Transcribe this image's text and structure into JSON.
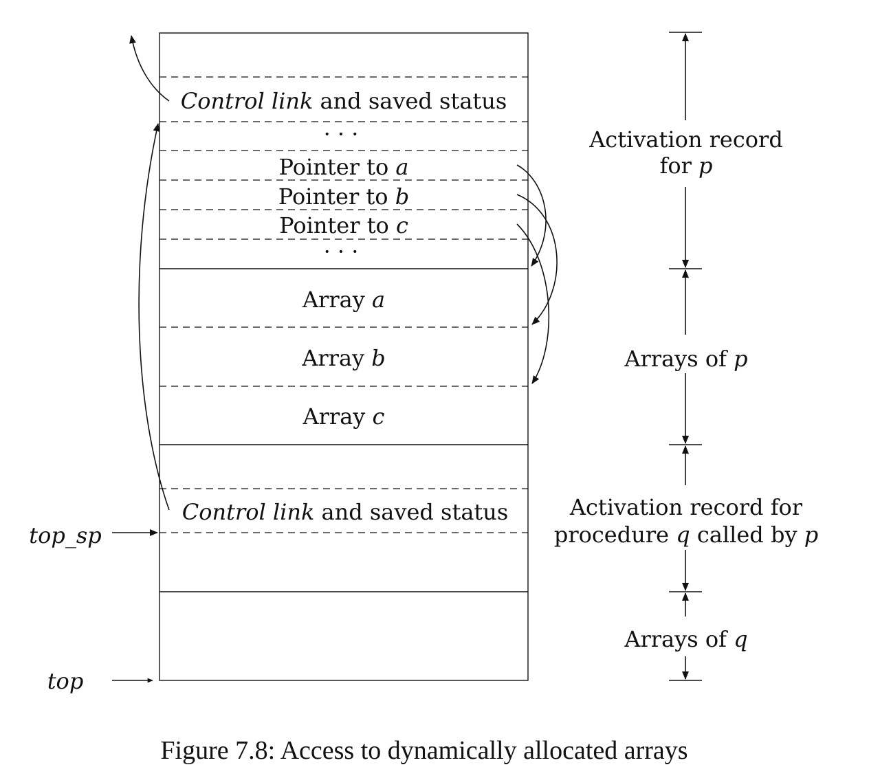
{
  "cells": {
    "control_link_p": {
      "italic": "Control link",
      "rest": " and saved status"
    },
    "ellipsis_1": "· · ·",
    "pointer_a": {
      "text": "Pointer to ",
      "var": "a"
    },
    "pointer_b": {
      "text": "Pointer to ",
      "var": "b"
    },
    "pointer_c": {
      "text": "Pointer to ",
      "var": "c"
    },
    "ellipsis_2": "· · ·",
    "array_a": {
      "text": "Array ",
      "var": "a"
    },
    "array_b": {
      "text": "Array ",
      "var": "b"
    },
    "array_c": {
      "text": "Array ",
      "var": "c"
    },
    "control_link_q": {
      "italic": "Control link",
      "rest": " and saved status"
    }
  },
  "pointers": {
    "top_sp": "top_sp",
    "top": "top"
  },
  "sections": {
    "activation_p": {
      "line1": "Activation record",
      "line2_text": "for ",
      "line2_var": "p"
    },
    "arrays_p": {
      "text": "Arrays of ",
      "var": "p"
    },
    "activation_q": {
      "line1": "Activation record for",
      "line2_a": "procedure ",
      "line2_var1": "q",
      "line2_b": " called by ",
      "line2_var2": "p"
    },
    "arrays_q": {
      "text": "Arrays of ",
      "var": "q"
    }
  },
  "caption": "Figure 7.8: Access to dynamically allocated arrays",
  "colors": {
    "ink": "#111111"
  }
}
